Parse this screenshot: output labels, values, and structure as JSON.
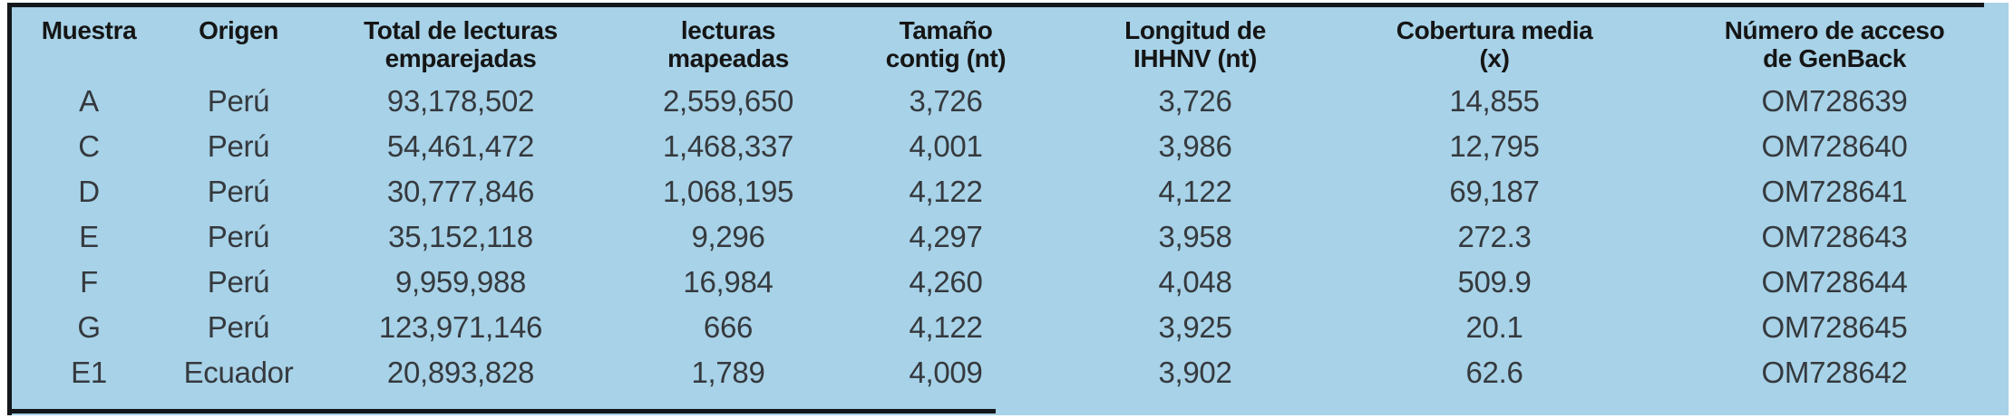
{
  "style": {
    "table_background": "#a7d2e8",
    "border_color": "#14181b",
    "header_text_color": "#151515",
    "body_text_color": "#35393d"
  },
  "table": {
    "columns": [
      {
        "key": "muestra",
        "label": "Muestra"
      },
      {
        "key": "origen",
        "label": "Origen"
      },
      {
        "key": "total-lecturas-emparejadas",
        "label": "Total de lecturas\nemparejadas"
      },
      {
        "key": "lecturas-mapeadas",
        "label": "lecturas\nmapeadas"
      },
      {
        "key": "tamano-contig",
        "label": "Tamaño\ncontig (nt)"
      },
      {
        "key": "longitud-ihhnv",
        "label": "Longitud de\nIHHNV (nt)"
      },
      {
        "key": "cobertura-media",
        "label": "Cobertura media\n(x)"
      },
      {
        "key": "numero-acceso-genback",
        "label": "Número de acceso\nde GenBack"
      }
    ],
    "rows": [
      {
        "cells": [
          "A",
          "Perú",
          "93,178,502",
          "2,559,650",
          "3,726",
          "3,726",
          "14,855",
          "OM728639"
        ]
      },
      {
        "cells": [
          "C",
          "Perú",
          "54,461,472",
          "1,468,337",
          "4,001",
          "3,986",
          "12,795",
          "OM728640"
        ]
      },
      {
        "cells": [
          "D",
          "Perú",
          "30,777,846",
          "1,068,195",
          "4,122",
          "4,122",
          "69,187",
          "OM728641"
        ]
      },
      {
        "cells": [
          "E",
          "Perú",
          "35,152,118",
          "9,296",
          "4,297",
          "3,958",
          "272.3",
          "OM728643"
        ]
      },
      {
        "cells": [
          "F",
          "Perú",
          "9,959,988",
          "16,984",
          "4,260",
          "4,048",
          "509.9",
          "OM728644"
        ]
      },
      {
        "cells": [
          "G",
          "Perú",
          "123,971,146",
          "666",
          "4,122",
          "3,925",
          "20.1",
          "OM728645"
        ]
      },
      {
        "cells": [
          "E1",
          "Ecuador",
          "20,893,828",
          "1,789",
          "4,009",
          "3,902",
          "62.6",
          "OM728642"
        ]
      }
    ]
  }
}
